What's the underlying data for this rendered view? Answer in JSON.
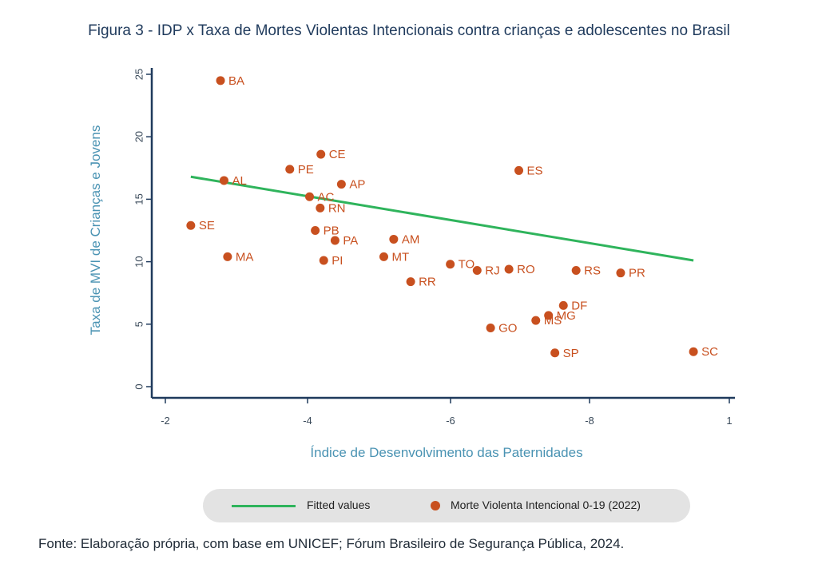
{
  "title": "Figura 3 - IDP x Taxa de Mortes Violentas Intencionais contra crianças e adolescentes no Brasil",
  "source": "Fonte: Elaboração própria, com base em UNICEF; Fórum Brasileiro de Segurança Pública, 2024.",
  "colors": {
    "points": "#c8501f",
    "fitted": "#2fb45c",
    "axis_title": "#4a93b3",
    "axis": "#1f3a5c"
  },
  "legend": {
    "fitted": "Fitted values",
    "points": "Morte Violenta Intencional 0-19 (2022)"
  },
  "chart_data": {
    "type": "scatter",
    "title": "Figura 3 - IDP x Taxa de Mortes Violentas Intencionais contra crianças e adolescentes no Brasil",
    "xlabel": "Índice de Desenvolvimento das Paternidades",
    "ylabel": "Taxa de MVI de Crianças e Jovens",
    "xticks": [
      -2,
      -4,
      -6,
      -8,
      1
    ],
    "yticks": [
      0,
      5,
      10,
      15,
      20,
      25
    ],
    "ylim": [
      0,
      25
    ],
    "legend_position": "bottom",
    "series": [
      {
        "name": "Morte Violenta Intencional 0-19 (2022)",
        "points": [
          {
            "label": "BA",
            "x": -2.78,
            "y": 24.5
          },
          {
            "label": "CE",
            "x": -4.2,
            "y": 18.6
          },
          {
            "label": "PE",
            "x": -3.76,
            "y": 17.4
          },
          {
            "label": "ES",
            "x": -7.0,
            "y": 17.3
          },
          {
            "label": "AL",
            "x": -2.83,
            "y": 16.5
          },
          {
            "label": "AP",
            "x": -4.49,
            "y": 16.2
          },
          {
            "label": "AC",
            "x": -4.04,
            "y": 15.2
          },
          {
            "label": "RN",
            "x": -4.19,
            "y": 14.3
          },
          {
            "label": "SE",
            "x": -2.36,
            "y": 12.9
          },
          {
            "label": "PB",
            "x": -4.12,
            "y": 12.5
          },
          {
            "label": "PA",
            "x": -4.4,
            "y": 11.7
          },
          {
            "label": "AM",
            "x": -5.23,
            "y": 11.8
          },
          {
            "label": "MA",
            "x": -2.88,
            "y": 10.4
          },
          {
            "label": "MT",
            "x": -5.09,
            "y": 10.4
          },
          {
            "label": "PI",
            "x": -4.24,
            "y": 10.1
          },
          {
            "label": "TO",
            "x": -6.03,
            "y": 9.8
          },
          {
            "label": "RJ",
            "x": -6.41,
            "y": 9.3
          },
          {
            "label": "RO",
            "x": -6.86,
            "y": 9.4
          },
          {
            "label": "RS",
            "x": -7.81,
            "y": 9.3
          },
          {
            "label": "PR",
            "x": -8.44,
            "y": 9.1
          },
          {
            "label": "RR",
            "x": -5.47,
            "y": 8.4
          },
          {
            "label": "DF",
            "x": -7.63,
            "y": 6.5
          },
          {
            "label": "MG",
            "x": -7.42,
            "y": 5.7
          },
          {
            "label": "MS",
            "x": -7.24,
            "y": 5.3
          },
          {
            "label": "GO",
            "x": -6.6,
            "y": 4.7
          },
          {
            "label": "SP",
            "x": -7.51,
            "y": 2.7
          },
          {
            "label": "SC",
            "x": -9.47,
            "y": 2.8
          }
        ]
      },
      {
        "name": "Fitted values",
        "type": "line",
        "points": [
          {
            "x": -2.36,
            "y": 16.8
          },
          {
            "x": -9.47,
            "y": 10.1
          }
        ]
      }
    ]
  }
}
